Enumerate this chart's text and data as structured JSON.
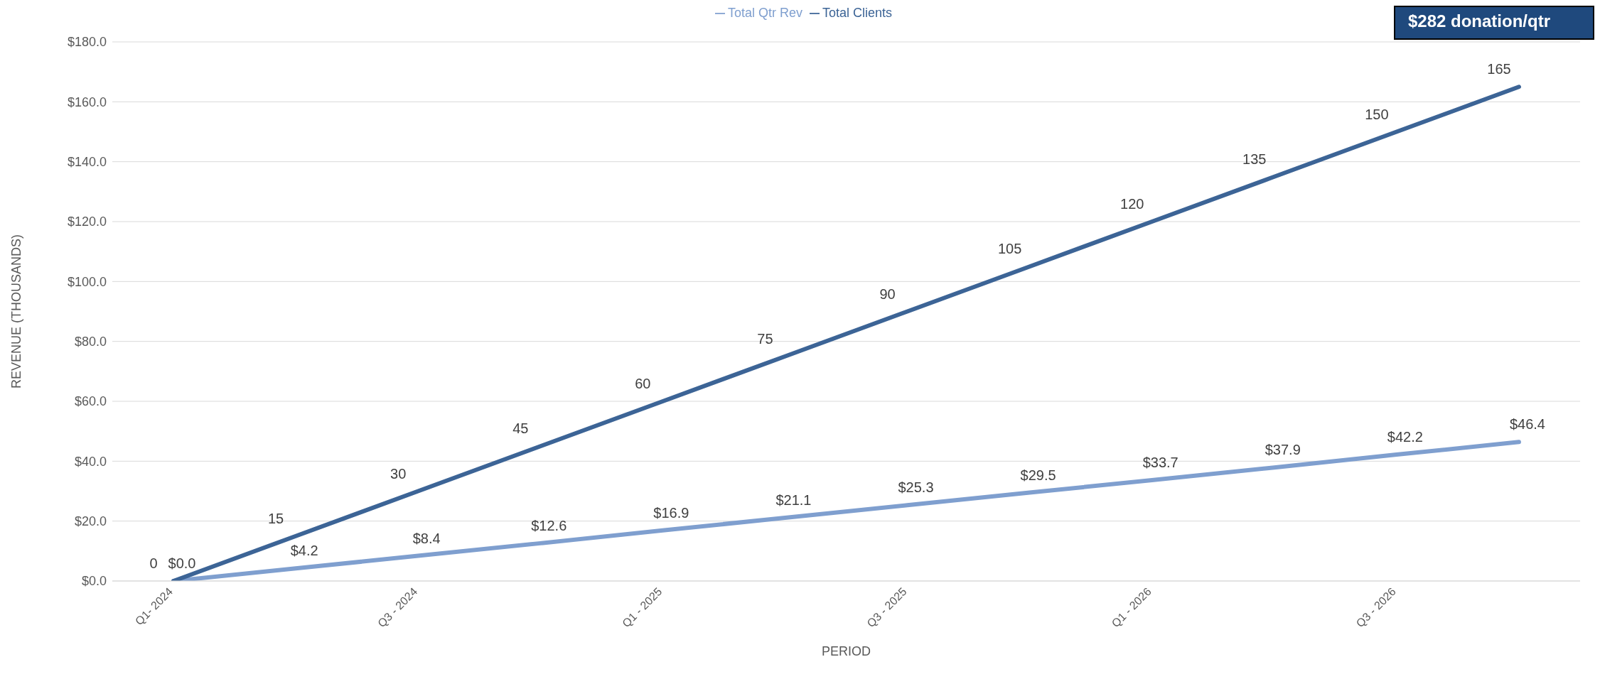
{
  "chart_data": {
    "type": "line",
    "xlabel": "PERIOD",
    "ylabel": "REVENUE (THOUSANDS)",
    "categories": [
      "Q1- 2024",
      null,
      "Q3 - 2024",
      null,
      "Q1 - 2025",
      null,
      "Q3 - 2025",
      null,
      "Q1 - 2026",
      null,
      "Q3 - 2026",
      null
    ],
    "series": [
      {
        "name": "Total Qtr Rev",
        "color": "#7f9fcf",
        "values": [
          0,
          4.2,
          8.4,
          12.6,
          16.9,
          21.1,
          25.3,
          29.5,
          33.7,
          37.9,
          42.2,
          46.4
        ],
        "value_labels": [
          "$0.0",
          "$4.2",
          "$8.4",
          "$12.6",
          "$16.9",
          "$21.1",
          "$25.3",
          "$29.5",
          "$33.7",
          "$37.9",
          "$42.2",
          "$46.4"
        ]
      },
      {
        "name": "Total Clients",
        "color": "#3c6496",
        "values": [
          0,
          15,
          30,
          45,
          60,
          75,
          90,
          105,
          120,
          135,
          150,
          165
        ],
        "value_labels": [
          "0",
          "15",
          "30",
          "45",
          "60",
          "75",
          "90",
          "105",
          "120",
          "135",
          "150",
          "165"
        ]
      }
    ],
    "ylim": [
      0,
      180
    ],
    "yticks": [
      {
        "value": 0,
        "label": "$0.0"
      },
      {
        "value": 20,
        "label": "$20.0"
      },
      {
        "value": 40,
        "label": "$40.0"
      },
      {
        "value": 60,
        "label": "$60.0"
      },
      {
        "value": 80,
        "label": "$80.0"
      },
      {
        "value": 100,
        "label": "$100.0"
      },
      {
        "value": 120,
        "label": "$120.0"
      },
      {
        "value": 140,
        "label": "$140.0"
      },
      {
        "value": 160,
        "label": "$160.0"
      },
      {
        "value": 180,
        "label": "$180.0"
      }
    ],
    "grid": "y",
    "legend": "top",
    "marker": "none",
    "line_style": "solid",
    "annotations": [
      "$282 donation/qtr"
    ]
  }
}
